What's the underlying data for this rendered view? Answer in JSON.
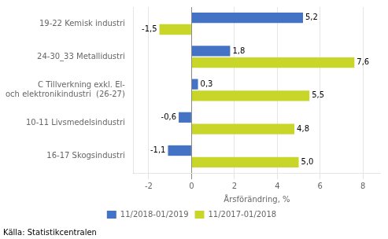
{
  "chart_data": {
    "type": "bar",
    "orientation": "horizontal",
    "categories": [
      "16-17 Skogsindustri",
      "10-11 Livsmedelsindustri",
      "C Tillverkning exkl. El-\noch elektronikindustri  (26-27)",
      "24-30_33 Metallidustri",
      "19-22 Kemisk industri"
    ],
    "series": [
      {
        "name": "11/2018-01/2019",
        "color": "#4472c4",
        "values": [
          -1.1,
          -0.6,
          0.3,
          1.8,
          5.2
        ],
        "value_labels": [
          "-1,1",
          "-0,6",
          "0,3",
          "1,8",
          "5,2"
        ]
      },
      {
        "name": "11/2017-01/2018",
        "color": "#c7d629",
        "values": [
          5.0,
          4.8,
          5.5,
          7.6,
          -1.5
        ],
        "value_labels": [
          "5,0",
          "4,8",
          "5,5",
          "7,6",
          "-1,5"
        ]
      }
    ],
    "xlabel": "Årsförändring, %",
    "xlim": [
      -2.7,
      8.8
    ],
    "xticks": [
      -2,
      0,
      2,
      4,
      6,
      8
    ],
    "grid": true,
    "legend": "bottom",
    "data_labels": true,
    "source": "Källa: Statistikcentralen"
  }
}
